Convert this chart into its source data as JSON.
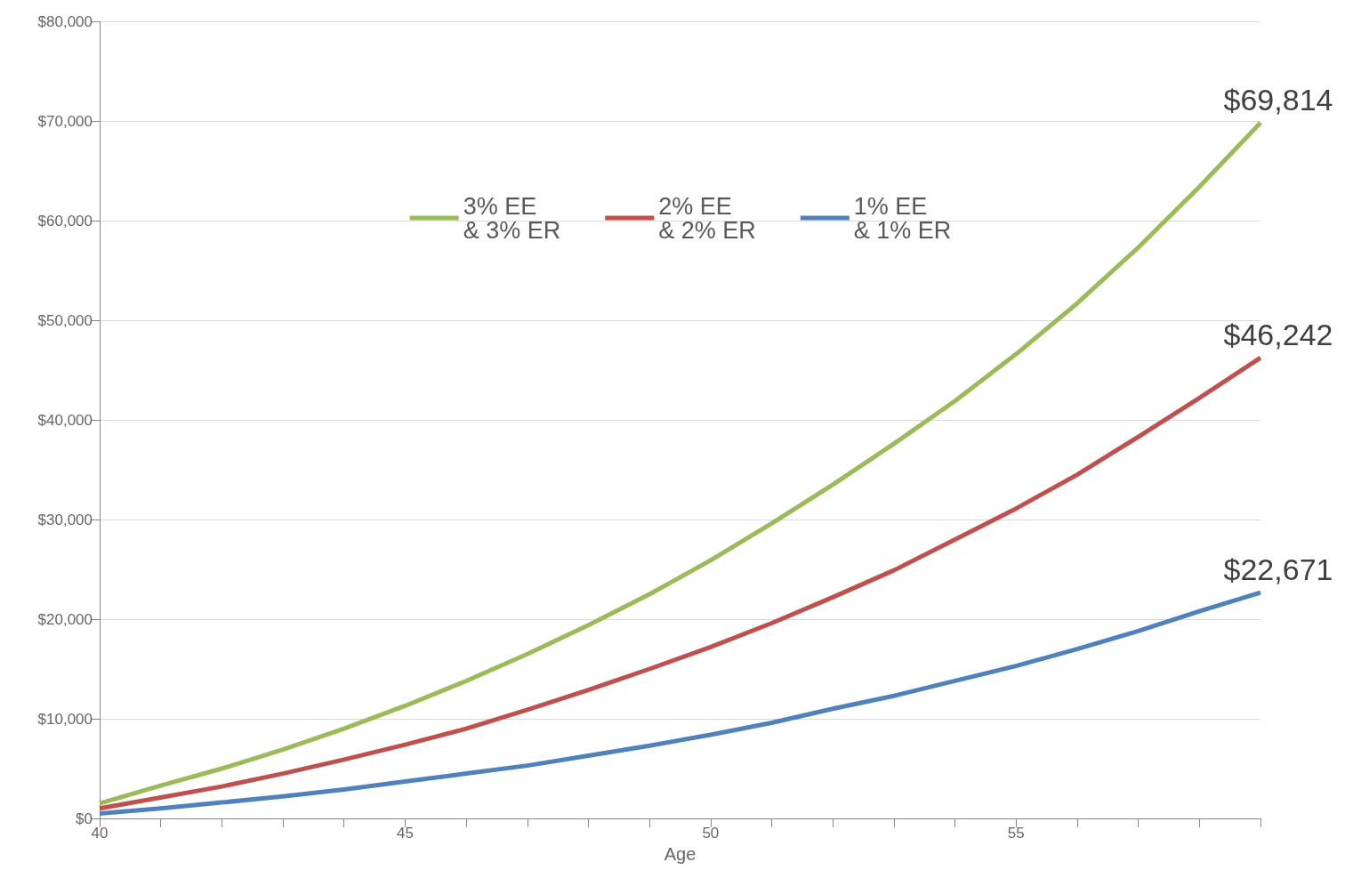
{
  "chart_data": {
    "type": "line",
    "xlabel": "Age",
    "x": [
      40,
      41,
      42,
      43,
      44,
      45,
      46,
      47,
      48,
      49,
      50,
      51,
      52,
      53,
      54,
      55,
      56,
      57,
      58,
      59
    ],
    "series": [
      {
        "name": "3% EE\n& 3% ER",
        "color": "#9bbb59",
        "values": [
          1500,
          3300,
          5000,
          6900,
          9000,
          11300,
          13800,
          16500,
          19400,
          22500,
          25900,
          29600,
          33500,
          37600,
          41900,
          46600,
          51700,
          57300,
          63400,
          69814
        ],
        "value_labels": [
          null,
          null,
          null,
          null,
          null,
          null,
          null,
          null,
          null,
          null,
          null,
          null,
          null,
          null,
          null,
          null,
          null,
          null,
          null,
          "$69,814"
        ]
      },
      {
        "name": "2% EE\n& 2% ER",
        "color": "#c0504d",
        "values": [
          1000,
          2100,
          3200,
          4500,
          5900,
          7400,
          9000,
          10900,
          12900,
          15000,
          17200,
          19600,
          22200,
          24900,
          28000,
          31100,
          34500,
          38300,
          42200,
          46242
        ],
        "value_labels": [
          null,
          null,
          null,
          null,
          null,
          null,
          null,
          null,
          null,
          null,
          null,
          null,
          null,
          null,
          null,
          null,
          null,
          null,
          null,
          "$46,242"
        ]
      },
      {
        "name": "1% EE\n& 1% ER",
        "color": "#4f81bd",
        "values": [
          500,
          1000,
          1600,
          2200,
          2900,
          3700,
          4500,
          5300,
          6300,
          7300,
          8400,
          9600,
          11000,
          12300,
          13800,
          15300,
          17000,
          18800,
          20800,
          22671
        ],
        "value_labels": [
          null,
          null,
          null,
          null,
          null,
          null,
          null,
          null,
          null,
          null,
          null,
          null,
          null,
          null,
          null,
          null,
          null,
          null,
          null,
          "$22,671"
        ]
      }
    ],
    "xlim": [
      40,
      59
    ],
    "xticks": [
      40,
      {
        "value": 41,
        "label": null
      },
      {
        "value": 42,
        "label": null
      },
      {
        "value": 43,
        "label": null
      },
      {
        "value": 44,
        "label": null
      },
      45,
      {
        "value": 46,
        "label": null
      },
      {
        "value": 47,
        "label": null
      },
      {
        "value": 48,
        "label": null
      },
      {
        "value": 49,
        "label": null
      },
      50,
      {
        "value": 51,
        "label": null
      },
      {
        "value": 52,
        "label": null
      },
      {
        "value": 53,
        "label": null
      },
      {
        "value": 54,
        "label": null
      },
      55,
      {
        "value": 56,
        "label": null
      },
      {
        "value": 57,
        "label": null
      },
      {
        "value": 58,
        "label": null
      },
      {
        "value": 59,
        "label": null
      }
    ],
    "ylim": [
      0,
      80000
    ],
    "yticks": [
      {
        "value": 0,
        "label": "$0"
      },
      {
        "value": 10000,
        "label": "$10,000"
      },
      {
        "value": 20000,
        "label": "$20,000"
      },
      {
        "value": 30000,
        "label": "$30,000"
      },
      {
        "value": 40000,
        "label": "$40,000"
      },
      {
        "value": 50000,
        "label": "$50,000"
      },
      {
        "value": 60000,
        "label": "$60,000"
      },
      {
        "value": 70000,
        "label": "$70,000"
      },
      {
        "value": 80000,
        "label": "$80,000"
      }
    ],
    "grid": "y",
    "legend": "top",
    "marker": "none",
    "line_style": "solid"
  }
}
